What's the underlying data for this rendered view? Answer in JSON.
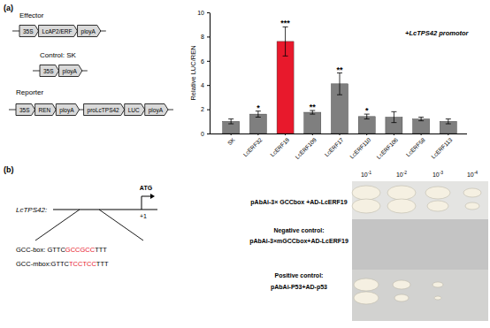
{
  "chart_data": {
    "type": "bar",
    "categories": [
      "SK",
      "LcERF32",
      "LcERF19",
      "LcERF109",
      "LcERF17",
      "LcERF110",
      "LcERF106",
      "LcERF58",
      "LcERF113"
    ],
    "values": [
      1.0,
      1.6,
      7.6,
      1.75,
      4.1,
      1.4,
      1.35,
      1.2,
      1.0
    ],
    "errors": [
      0.2,
      0.25,
      1.2,
      0.15,
      0.9,
      0.2,
      0.45,
      0.15,
      0.2
    ],
    "significance": [
      null,
      "*",
      "***",
      "**",
      "**",
      "*",
      null,
      null,
      null
    ],
    "colors": [
      "#7f7f7f",
      "#7f7f7f",
      "#e8192c",
      "#7f7f7f",
      "#7f7f7f",
      "#7f7f7f",
      "#7f7f7f",
      "#7f7f7f",
      "#7f7f7f"
    ],
    "ylabel": "Relative LUC/REN",
    "annotation": "+LcTPS42 promotor",
    "ylim": [
      0,
      10
    ],
    "yticks": [
      0,
      2,
      4,
      6,
      8,
      10
    ]
  },
  "panel_a": {
    "label": "(a)",
    "constructs": [
      {
        "title": "Effector",
        "parts": [
          "35S",
          "LcAP2/ERF",
          "ployA"
        ]
      },
      {
        "title": "Control: SK",
        "parts": [
          "35S",
          "ployA"
        ]
      },
      {
        "title": "Reporter",
        "parts": [
          "35S",
          "REN",
          "ployA",
          "proLcTPS42",
          "LUC",
          "ployA"
        ]
      }
    ]
  },
  "panel_b": {
    "label": "(b)",
    "gene": "LcTPS42:",
    "start_codon": "ATG",
    "tss": "+1",
    "motifs": [
      {
        "segments": [
          {
            "text": "GCC-box: GTTC"
          },
          {
            "text": "GCCGCC",
            "color": "#e8192c"
          },
          {
            "text": "TTT"
          }
        ]
      },
      {
        "segments": [
          {
            "text": "GCC-mbox:GTTC"
          },
          {
            "text": "TCCTCC",
            "color": "#e8192c"
          },
          {
            "text": "TTT"
          }
        ]
      }
    ],
    "assays": [
      {
        "lines": [
          "pAbAi-3× GCCbox +AD-LcERF19"
        ]
      },
      {
        "lines": [
          "Negative control:",
          "pAbAi-3×mGCCbox+AD-LcERF19"
        ]
      },
      {
        "lines": [
          "Positive control:",
          "pAbAi-P53+AD-p53"
        ]
      }
    ],
    "dilutions": [
      {
        "base": "10",
        "exp": "-1"
      },
      {
        "base": "10",
        "exp": "-2"
      },
      {
        "base": "10",
        "exp": "-3"
      },
      {
        "base": "10",
        "exp": "-4"
      }
    ]
  }
}
